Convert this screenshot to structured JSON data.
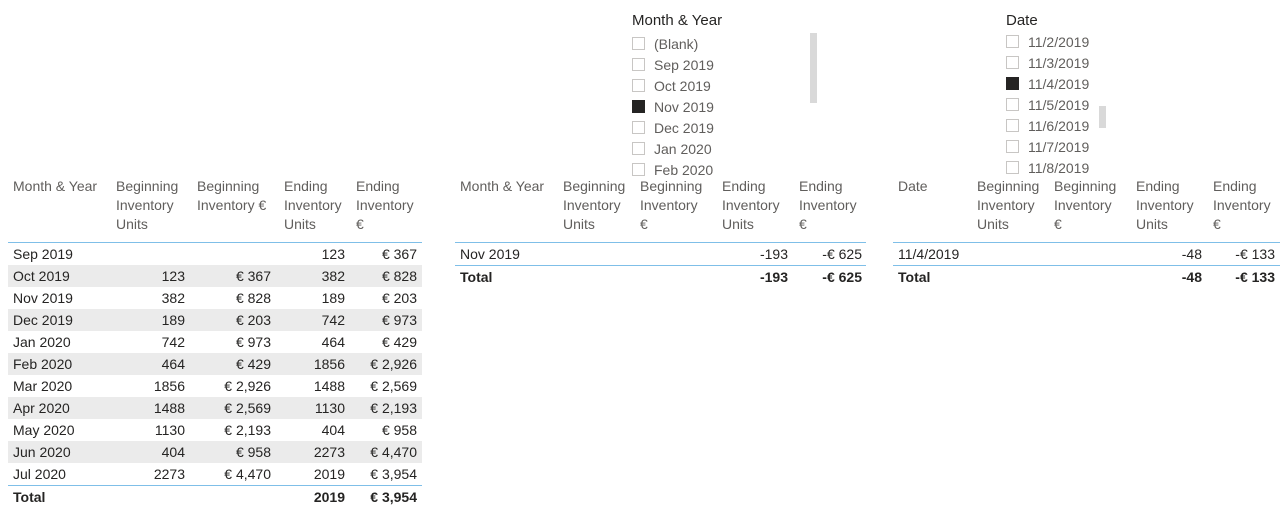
{
  "slicers": [
    {
      "title": "Month & Year",
      "items": [
        "(Blank)",
        "Sep 2019",
        "Oct 2019",
        "Nov 2019",
        "Dec 2019",
        "Jan 2020",
        "Feb 2020"
      ],
      "selected": [
        false,
        false,
        false,
        true,
        false,
        false,
        false
      ]
    },
    {
      "title": "Date",
      "items": [
        "11/2/2019",
        "11/3/2019",
        "11/4/2019",
        "11/5/2019",
        "11/6/2019",
        "11/7/2019",
        "11/8/2019"
      ],
      "selected": [
        false,
        false,
        true,
        false,
        false,
        false,
        false
      ]
    }
  ],
  "tables": [
    {
      "columns": [
        "Month & Year",
        "Beginning Inventory Units",
        "Beginning Inventory €",
        "Ending Inventory Units",
        "Ending Inventory €"
      ],
      "rows": [
        [
          "Sep 2019",
          null,
          null,
          "123",
          "€ 367"
        ],
        [
          "Oct 2019",
          "123",
          "€ 367",
          "382",
          "€ 828"
        ],
        [
          "Nov 2019",
          "382",
          "€ 828",
          "189",
          "€ 203"
        ],
        [
          "Dec 2019",
          "189",
          "€ 203",
          "742",
          "€ 973"
        ],
        [
          "Jan 2020",
          "742",
          "€ 973",
          "464",
          "€ 429"
        ],
        [
          "Feb 2020",
          "464",
          "€ 429",
          "1856",
          "€ 2,926"
        ],
        [
          "Mar 2020",
          "1856",
          "€ 2,926",
          "1488",
          "€ 2,569"
        ],
        [
          "Apr 2020",
          "1488",
          "€ 2,569",
          "1130",
          "€ 2,193"
        ],
        [
          "May 2020",
          "1130",
          "€ 2,193",
          "404",
          "€ 958"
        ],
        [
          "Jun 2020",
          "404",
          "€ 958",
          "2273",
          "€ 4,470"
        ],
        [
          "Jul 2020",
          "2273",
          "€ 4,470",
          "2019",
          "€ 3,954"
        ]
      ],
      "total": [
        "Total",
        null,
        null,
        "2019",
        "€ 3,954"
      ]
    },
    {
      "columns": [
        "Month & Year",
        "Beginning Inventory Units",
        "Beginning Inventory €",
        "Ending Inventory Units",
        "Ending Inventory €"
      ],
      "rows": [
        [
          "Nov 2019",
          null,
          null,
          "-193",
          "-€ 625"
        ]
      ],
      "total": [
        "Total",
        null,
        null,
        "-193",
        "-€ 625"
      ]
    },
    {
      "columns": [
        "Date",
        "Beginning Inventory Units",
        "Beginning Inventory €",
        "Ending Inventory Units",
        "Ending Inventory €"
      ],
      "rows": [
        [
          "11/4/2019",
          null,
          null,
          "-48",
          "-€ 133"
        ]
      ],
      "total": [
        "Total",
        null,
        null,
        "-48",
        "-€ 133"
      ]
    }
  ]
}
